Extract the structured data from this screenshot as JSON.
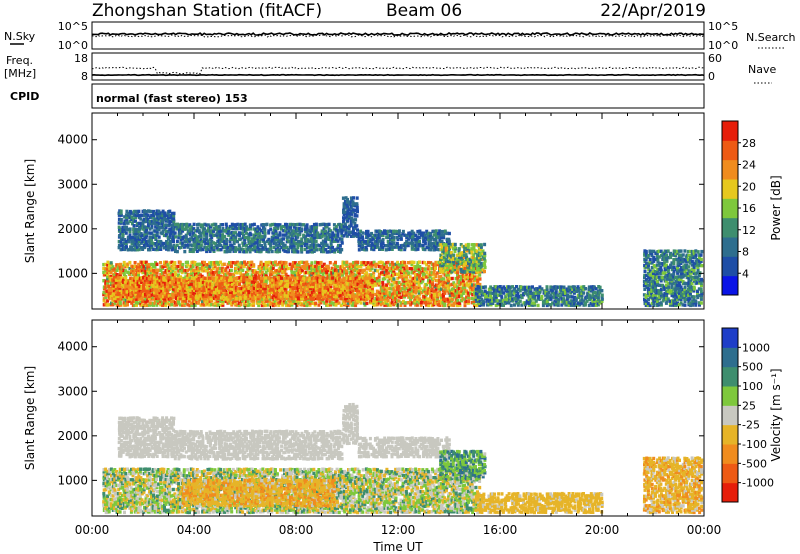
{
  "header": {
    "station": "Zhongshan Station (fitACF)",
    "beam": "Beam 06",
    "date": "22/Apr/2019"
  },
  "sky_panel": {
    "left_label": "N.Sky",
    "left_ticks": [
      "10^5",
      "10^0"
    ],
    "right_ticks": [
      "10^5",
      "10^0"
    ],
    "right_label": "N.Search"
  },
  "freq_panel": {
    "left_label_1": "Freq.",
    "left_label_2": "[MHz]",
    "left_ticks": [
      "18",
      "8"
    ],
    "right_ticks": [
      "60",
      "0"
    ],
    "right_label": "Nave"
  },
  "cpid_panel": {
    "label": "CPID",
    "text": "normal (fast stereo) 153"
  },
  "colors": {
    "power_scale": [
      "#0a14e6",
      "#1e4ea6",
      "#2e6e8e",
      "#3e8e6e",
      "#7ec83c",
      "#e6c81e",
      "#f08c1e",
      "#ee5a14",
      "#e61e0a"
    ],
    "velocity_scale": [
      "#e61e0a",
      "#ee5a14",
      "#f08c1e",
      "#e6b428",
      "#c8c8c0",
      "#7ec83c",
      "#3e8e6e",
      "#2e6e8e",
      "#1e3ec8"
    ]
  },
  "chart_data": [
    {
      "type": "heatmap",
      "panel": "power",
      "ylabel": "Slant Range [km]",
      "yticks": [
        1000,
        2000,
        3000,
        4000
      ],
      "ylim": [
        200,
        4600
      ],
      "xlim_hours": [
        0,
        24
      ],
      "colorbar": {
        "label": "Power [dB]",
        "ticks": [
          "4",
          "8",
          "12",
          "16",
          "20",
          "24",
          "28"
        ],
        "range": [
          0,
          32
        ]
      },
      "blobs": [
        {
          "t0": 0.4,
          "t1": 15.2,
          "r0": 250,
          "r1": 1250,
          "v": [
            14,
            30
          ]
        },
        {
          "t0": 0.6,
          "t1": 11.0,
          "r0": 400,
          "r1": 900,
          "v": [
            18,
            30
          ]
        },
        {
          "t0": 15.0,
          "t1": 20.0,
          "r0": 250,
          "r1": 700,
          "v": [
            4,
            16
          ]
        },
        {
          "t0": 1.0,
          "t1": 3.2,
          "r0": 1500,
          "r1": 2400,
          "v": [
            4,
            12
          ]
        },
        {
          "t0": 3.2,
          "t1": 9.8,
          "r0": 1450,
          "r1": 2100,
          "v": [
            4,
            14
          ]
        },
        {
          "t0": 9.8,
          "t1": 10.4,
          "r0": 1800,
          "r1": 2700,
          "v": [
            4,
            10
          ]
        },
        {
          "t0": 10.4,
          "t1": 14.0,
          "r0": 1500,
          "r1": 1950,
          "v": [
            4,
            12
          ]
        },
        {
          "t0": 13.6,
          "t1": 15.4,
          "r0": 1000,
          "r1": 1650,
          "v": [
            8,
            22
          ]
        },
        {
          "t0": 21.6,
          "t1": 23.9,
          "r0": 250,
          "r1": 1500,
          "v": [
            4,
            16
          ]
        }
      ]
    },
    {
      "type": "heatmap",
      "panel": "velocity",
      "ylabel": "Slant Range [km]",
      "yticks": [
        1000,
        2000,
        3000,
        4000
      ],
      "ylim": [
        200,
        4600
      ],
      "xlim_hours": [
        0,
        24
      ],
      "xticks": [
        "00:00",
        "04:00",
        "08:00",
        "12:00",
        "16:00",
        "20:00",
        "00:00"
      ],
      "xlabel": "Time UT",
      "colorbar": {
        "label": "Velocity [m s⁻¹]",
        "ticks": [
          "1000",
          "500",
          "100",
          "25",
          "-25",
          "-100",
          "-500",
          "-1000"
        ],
        "range": [
          -1200,
          1200
        ]
      },
      "blobs": [
        {
          "t0": 0.4,
          "t1": 15.2,
          "r0": 250,
          "r1": 1250,
          "v": [
            -400,
            600
          ]
        },
        {
          "t0": 3.5,
          "t1": 9.5,
          "r0": 400,
          "r1": 1000,
          "v": [
            -500,
            -100
          ]
        },
        {
          "t0": 15.0,
          "t1": 20.0,
          "r0": 250,
          "r1": 700,
          "v": [
            -400,
            -100
          ]
        },
        {
          "t0": 1.0,
          "t1": 3.2,
          "r0": 1500,
          "r1": 2400,
          "v": [
            -25,
            25
          ]
        },
        {
          "t0": 3.2,
          "t1": 9.8,
          "r0": 1450,
          "r1": 2100,
          "v": [
            -25,
            25
          ]
        },
        {
          "t0": 9.8,
          "t1": 10.4,
          "r0": 1800,
          "r1": 2700,
          "v": [
            -25,
            25
          ]
        },
        {
          "t0": 10.4,
          "t1": 14.0,
          "r0": 1500,
          "r1": 1950,
          "v": [
            -25,
            25
          ]
        },
        {
          "t0": 13.6,
          "t1": 15.4,
          "r0": 1000,
          "r1": 1650,
          "v": [
            100,
            900
          ]
        },
        {
          "t0": 21.6,
          "t1": 23.9,
          "r0": 250,
          "r1": 1500,
          "v": [
            -500,
            -50
          ]
        }
      ]
    }
  ]
}
